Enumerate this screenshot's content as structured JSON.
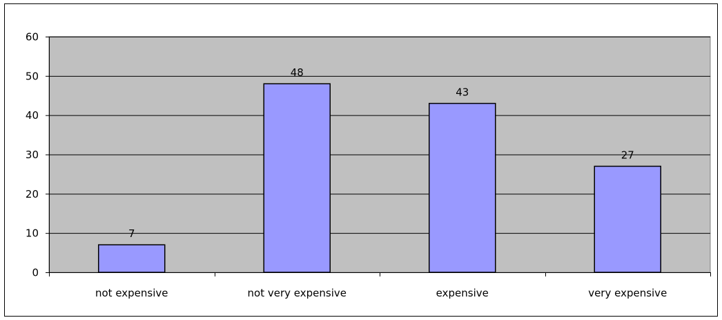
{
  "chart_data": {
    "type": "bar",
    "title": "",
    "xlabel": "",
    "ylabel": "",
    "categories": [
      "not expensive",
      "not very expensive",
      "expensive",
      "very expensive"
    ],
    "values": [
      7,
      48,
      43,
      27
    ],
    "data_labels": [
      "7",
      "48",
      "43",
      "27"
    ],
    "ylim": [
      0,
      60
    ],
    "yticks": [
      0,
      10,
      20,
      30,
      40,
      50,
      60
    ],
    "ytick_labels": [
      "0",
      "10",
      "20",
      "30",
      "40",
      "50",
      "60"
    ],
    "grid": true,
    "legend": "none",
    "colors": {
      "bar": "#9999ff",
      "plot_background": "#c0c0c0",
      "gridline": "#000000",
      "outline": "#000000"
    }
  }
}
